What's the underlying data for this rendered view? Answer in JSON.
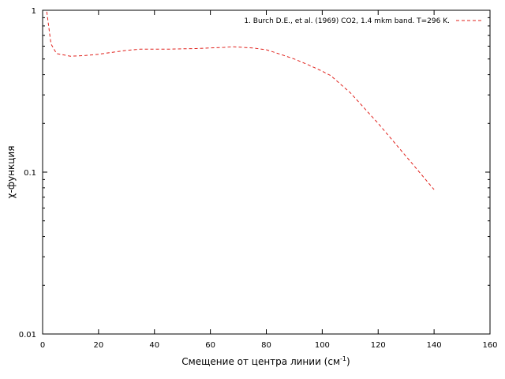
{
  "chart_data": {
    "type": "line",
    "title": "",
    "xlabel": "Смещение от центра линии (см",
    "xlabel_sup": "-1",
    "xlabel_suffix": ")",
    "ylabel": "χ-функция",
    "xlim": [
      0,
      160
    ],
    "ylim": [
      0.01,
      1
    ],
    "yscale": "log",
    "grid": false,
    "legend_position": "top-right",
    "x_ticks": [
      0,
      20,
      40,
      60,
      80,
      100,
      120,
      140,
      160
    ],
    "x_tick_labels": [
      "0",
      "20",
      "40",
      "60",
      "80",
      "100",
      "120",
      "140",
      "160"
    ],
    "y_ticks": [
      0.01,
      0.1,
      1
    ],
    "y_tick_labels": [
      "0.01",
      "0.1",
      "1"
    ],
    "series": [
      {
        "name": "1. Burch D.E., et al. (1969) CO2, 1.4 mkm band. T=296 K.",
        "color": "#e0201b",
        "style": "dashed",
        "x": [
          1.5,
          3,
          5,
          10,
          15,
          20,
          25,
          30,
          35,
          40,
          45,
          50,
          55,
          60,
          65,
          68,
          75,
          80,
          85,
          90,
          95,
          100,
          103,
          110,
          120,
          130,
          140
        ],
        "y": [
          0.98,
          0.62,
          0.54,
          0.52,
          0.525,
          0.535,
          0.55,
          0.565,
          0.575,
          0.575,
          0.575,
          0.578,
          0.58,
          0.585,
          0.59,
          0.595,
          0.585,
          0.57,
          0.535,
          0.5,
          0.46,
          0.42,
          0.395,
          0.31,
          0.2,
          0.125,
          0.078
        ]
      }
    ]
  }
}
